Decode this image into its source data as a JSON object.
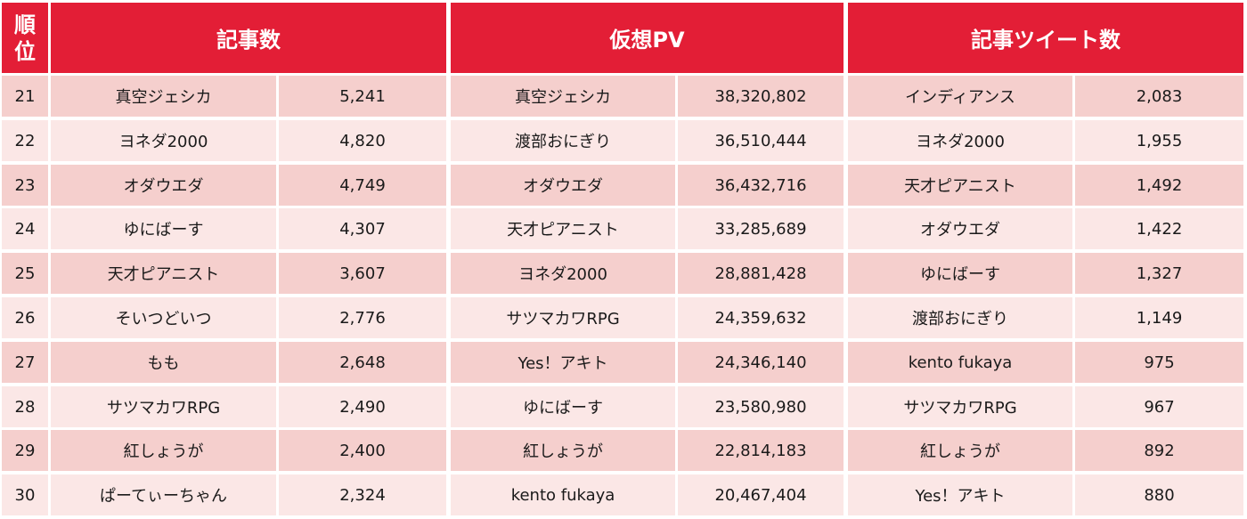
{
  "header": {
    "rank": [
      "順",
      "位"
    ],
    "articles": "記事数",
    "pv": "仮想PV",
    "tweets": "記事ツイート数"
  },
  "rows": [
    {
      "rank": "21",
      "articles_name": "真空ジェシカ",
      "articles_value": "5,241",
      "pv_name": "真空ジェシカ",
      "pv_value": "38,320,802",
      "tweets_name": "インディアンス",
      "tweets_value": "2,083"
    },
    {
      "rank": "22",
      "articles_name": "ヨネダ2000",
      "articles_value": "4,820",
      "pv_name": "渡部おにぎり",
      "pv_value": "36,510,444",
      "tweets_name": "ヨネダ2000",
      "tweets_value": "1,955"
    },
    {
      "rank": "23",
      "articles_name": "オダウエダ",
      "articles_value": "4,749",
      "pv_name": "オダウエダ",
      "pv_value": "36,432,716",
      "tweets_name": "天才ピアニスト",
      "tweets_value": "1,492"
    },
    {
      "rank": "24",
      "articles_name": "ゆにばーす",
      "articles_value": "4,307",
      "pv_name": "天才ピアニスト",
      "pv_value": "33,285,689",
      "tweets_name": "オダウエダ",
      "tweets_value": "1,422"
    },
    {
      "rank": "25",
      "articles_name": "天才ピアニスト",
      "articles_value": "3,607",
      "pv_name": "ヨネダ2000",
      "pv_value": "28,881,428",
      "tweets_name": "ゆにばーす",
      "tweets_value": "1,327"
    },
    {
      "rank": "26",
      "articles_name": "そいつどいつ",
      "articles_value": "2,776",
      "pv_name": "サツマカワRPG",
      "pv_value": "24,359,632",
      "tweets_name": "渡部おにぎり",
      "tweets_value": "1,149"
    },
    {
      "rank": "27",
      "articles_name": "もも",
      "articles_value": "2,648",
      "pv_name": "Yes！アキト",
      "pv_value": "24,346,140",
      "tweets_name": "kento fukaya",
      "tweets_value": "975"
    },
    {
      "rank": "28",
      "articles_name": "サツマカワRPG",
      "articles_value": "2,490",
      "pv_name": "ゆにばーす",
      "pv_value": "23,580,980",
      "tweets_name": "サツマカワRPG",
      "tweets_value": "967"
    },
    {
      "rank": "29",
      "articles_name": "紅しょうが",
      "articles_value": "2,400",
      "pv_name": "紅しょうが",
      "pv_value": "22,814,183",
      "tweets_name": "紅しょうが",
      "tweets_value": "892"
    },
    {
      "rank": "30",
      "articles_name": "ぱーてぃーちゃん",
      "articles_value": "2,324",
      "pv_name": "kento fukaya",
      "pv_value": "20,467,404",
      "tweets_name": "Yes！アキト",
      "tweets_value": "880"
    }
  ]
}
